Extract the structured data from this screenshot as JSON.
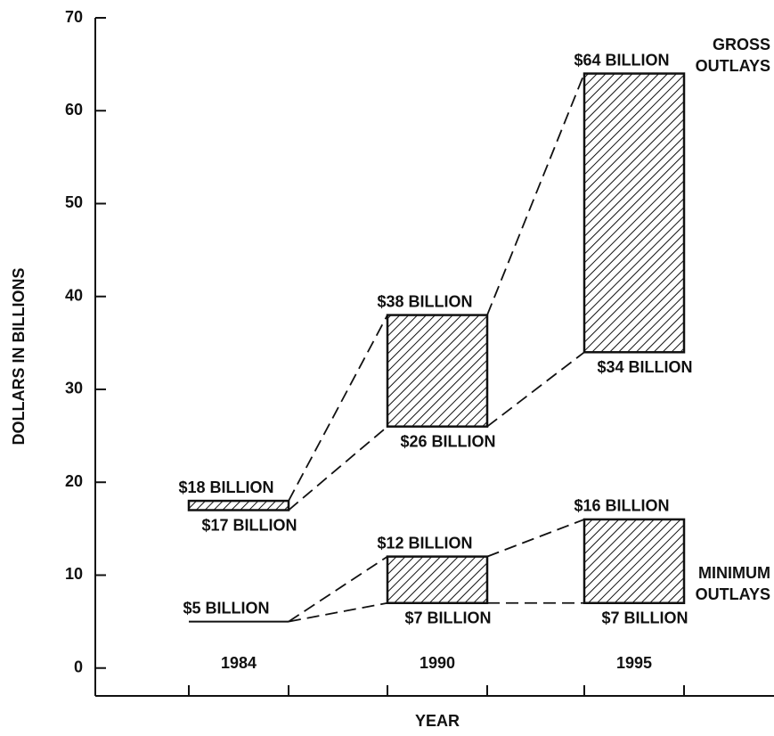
{
  "chart_data": {
    "type": "range",
    "y_label": "DOLLARS IN BILLIONS",
    "x_label": "YEAR",
    "categories": [
      "1984",
      "1990",
      "1995"
    ],
    "ylim": [
      -3,
      70
    ],
    "yticks": [
      0,
      10,
      20,
      30,
      40,
      50,
      60,
      70
    ],
    "series": [
      {
        "name": "GROSS OUTLAYS",
        "color": "#111111",
        "low": [
          17,
          26,
          34
        ],
        "high": [
          18,
          38,
          64
        ],
        "low_labels": [
          "$17 BILLION",
          "$26 BILLION",
          "$34 BILLION"
        ],
        "high_labels": [
          "$18 BILLION",
          "$38 BILLION",
          "$64 BILLION"
        ]
      },
      {
        "name": "MINIMUM OUTLAYS",
        "color": "#111111",
        "low": [
          5,
          7,
          7
        ],
        "high": [
          5,
          12,
          16
        ],
        "low_labels": [
          null,
          "$7 BILLION",
          "$7 BILLION"
        ],
        "high_labels": [
          "$5 BILLION",
          "$12 BILLION",
          "$16 BILLION"
        ]
      }
    ]
  }
}
